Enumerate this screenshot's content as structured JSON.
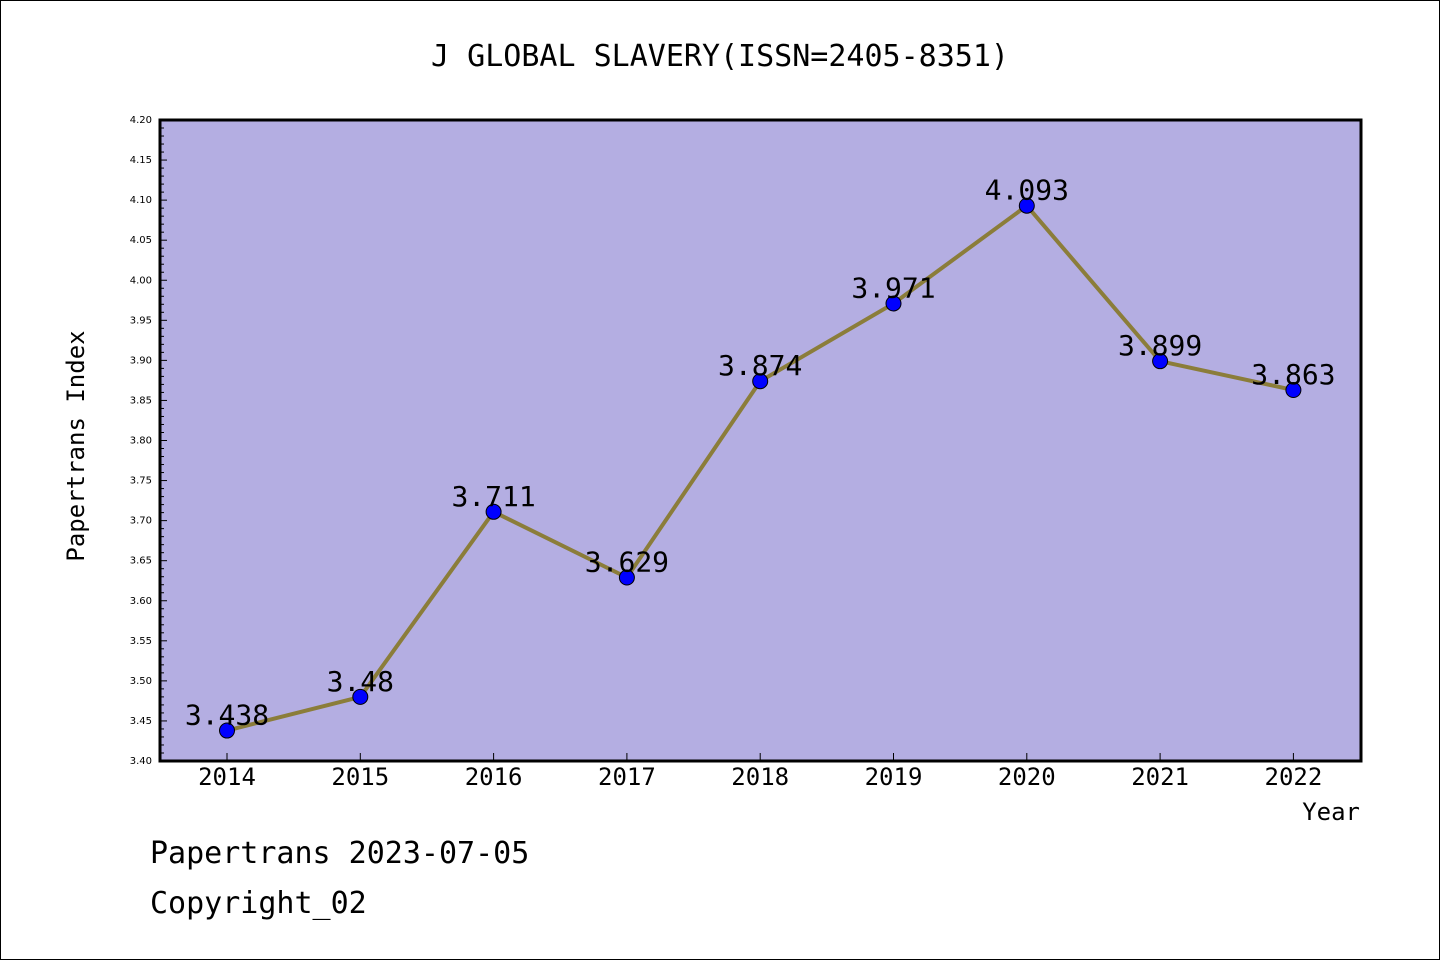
{
  "chart_data": {
    "type": "line",
    "title": "J GLOBAL SLAVERY(ISSN=2405-8351)",
    "xlabel": "Year",
    "ylabel": "Papertrans Index",
    "categories": [
      "2014",
      "2015",
      "2016",
      "2017",
      "2018",
      "2019",
      "2020",
      "2021",
      "2022"
    ],
    "values": [
      3.438,
      3.48,
      3.711,
      3.629,
      3.874,
      3.971,
      4.093,
      3.899,
      3.863
    ],
    "data_labels": [
      "3.438",
      "3.48",
      "3.711",
      "3.629",
      "3.874",
      "3.971",
      "4.093",
      "3.899",
      "3.863"
    ],
    "ylim": [
      3.4,
      4.2
    ],
    "yticks": [
      "3.40",
      "3.45",
      "3.50",
      "3.55",
      "3.60",
      "3.65",
      "3.70",
      "3.75",
      "3.80",
      "3.85",
      "3.90",
      "3.95",
      "4.00",
      "4.05",
      "4.10",
      "4.15",
      "4.20"
    ],
    "grid": false,
    "legend": "none",
    "colors": {
      "plot_background": "#b4aee2",
      "line": "#8b7d3a",
      "marker": "#0000ff",
      "axes": "#000000"
    }
  },
  "footer": {
    "line1": "Papertrans 2023-07-05",
    "line2": "Copyright_02"
  }
}
